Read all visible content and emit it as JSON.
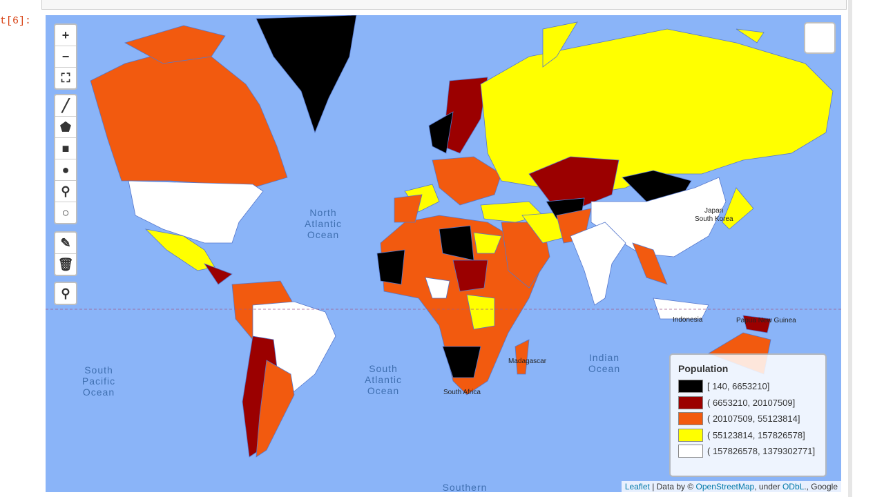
{
  "cell_prompt": "t[6]:",
  "map": {
    "ocean_labels": [
      {
        "lines": [
          "North",
          "Atlantic",
          "Ocean"
        ]
      },
      {
        "lines": [
          "South",
          "Pacific",
          "Ocean"
        ]
      },
      {
        "lines": [
          "South",
          "Atlantic",
          "Ocean"
        ]
      },
      {
        "lines": [
          "Indian",
          "Ocean"
        ]
      },
      {
        "lines": [
          "Southern"
        ]
      }
    ],
    "place_labels": [
      "Japan",
      "South Korea",
      "Indonesia",
      "Madagascar",
      "Papua New Guinea",
      "South Africa"
    ],
    "legend": {
      "title": "Population",
      "items": [
        {
          "label": "[ 140, 6653210]",
          "color": "#000000"
        },
        {
          "label": "( 6653210, 20107509]",
          "color": "#9b0000"
        },
        {
          "label": "( 20107509, 55123814]",
          "color": "#f25a0f"
        },
        {
          "label": "( 55123814, 157826578]",
          "color": "#ffff00"
        },
        {
          "label": "( 157826578, 1379302771]",
          "color": "#ffffff"
        }
      ]
    },
    "attribution": {
      "leaflet": "Leaflet",
      "text1": " | Data by © ",
      "osm": "OpenStreetMap",
      "text2": ", under ",
      "odbl": "ODbL",
      "text3": "., Google"
    }
  }
}
